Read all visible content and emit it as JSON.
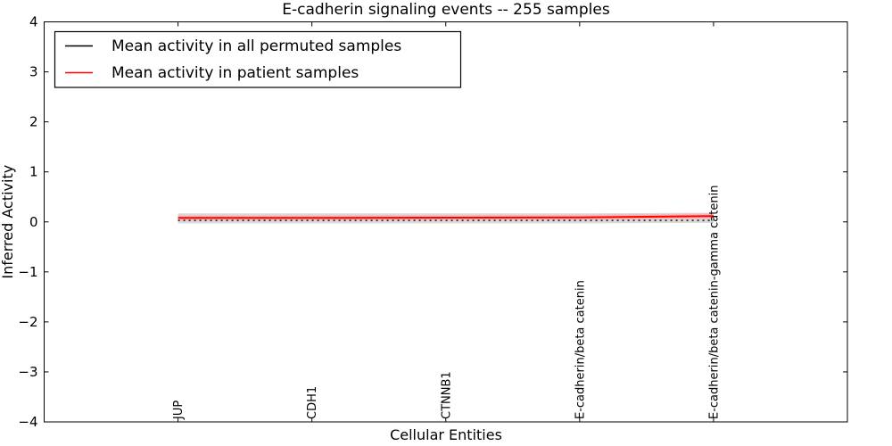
{
  "figure": {
    "background": "#ffffff"
  },
  "chart_data": {
    "type": "line",
    "title": "E-cadherin signaling events -- 255 samples",
    "xlabel": "Cellular Entities",
    "ylabel": "Inferred Activity",
    "ylim": [
      -4,
      4
    ],
    "xlim": [
      -1,
      5
    ],
    "grid": false,
    "ytick_values": [
      4,
      3,
      2,
      1,
      0,
      -1,
      -2,
      -3,
      -4
    ],
    "ytick_labels": [
      "4",
      "3",
      "2",
      "1",
      "0",
      "−1",
      "−2",
      "−3",
      "−4"
    ],
    "categories": [
      "JUP",
      "CDH1",
      "CTNNB1",
      "E-cadherin/beta catenin",
      "E-cadherin/beta catenin-gamma catenin"
    ],
    "series": [
      {
        "name": "Mean activity in all permuted samples",
        "color": "#000000",
        "linestyle": "dotted",
        "values": [
          0.03,
          0.03,
          0.03,
          0.03,
          0.03
        ],
        "band": {
          "color": "#d9d9d9",
          "high": [
            0.17,
            0.17,
            0.17,
            0.17,
            0.18
          ],
          "low": [
            -0.03,
            -0.03,
            -0.03,
            -0.03,
            -0.02
          ]
        }
      },
      {
        "name": "Mean activity in patient samples",
        "color": "#ff0000",
        "linestyle": "solid",
        "values": [
          0.08,
          0.08,
          0.085,
          0.09,
          0.115
        ],
        "band": {
          "color": "#f8b8b8",
          "high": [
            0.13,
            0.13,
            0.135,
            0.14,
            0.17
          ],
          "low": [
            0.03,
            0.03,
            0.035,
            0.04,
            0.06
          ]
        }
      }
    ],
    "legend": {
      "position": "upper left",
      "entries": [
        {
          "label": "Mean activity in all permuted samples",
          "color": "#000000",
          "linestyle": "solid"
        },
        {
          "label": "Mean activity in patient samples",
          "color": "#ff0000",
          "linestyle": "solid"
        }
      ]
    }
  }
}
